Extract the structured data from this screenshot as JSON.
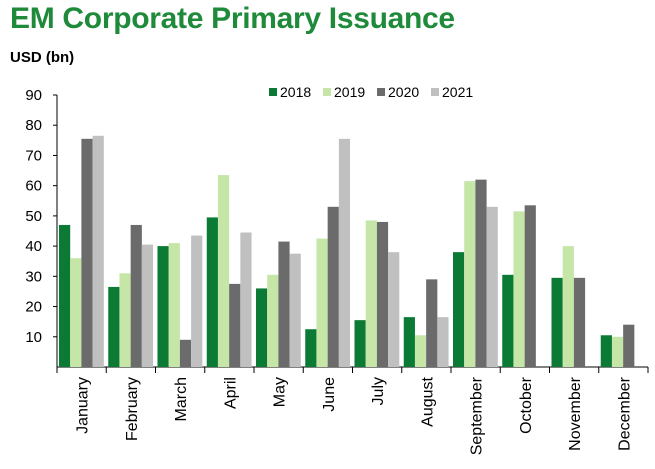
{
  "chart_data": {
    "type": "bar",
    "title": "EM Corporate Primary Issuance",
    "ylabel": "USD (bn)",
    "xlabel": "",
    "ylim": [
      0,
      90
    ],
    "yticks": [
      10,
      20,
      30,
      40,
      50,
      60,
      70,
      80,
      90
    ],
    "grid": false,
    "legend_position": "top-right",
    "categories": [
      "January",
      "February",
      "March",
      "April",
      "May",
      "June",
      "July",
      "August",
      "September",
      "October",
      "November",
      "December"
    ],
    "series": [
      {
        "name": "2018",
        "color": "#0a7a35",
        "values": [
          47,
          26.5,
          40,
          49.5,
          26,
          12.5,
          15.5,
          16.5,
          38,
          30.5,
          29.5,
          10.5
        ]
      },
      {
        "name": "2019",
        "color": "#c6e6a8",
        "values": [
          36,
          31,
          41,
          63.5,
          30.5,
          42.5,
          48.5,
          10.5,
          61.5,
          51.5,
          40,
          10
        ]
      },
      {
        "name": "2020",
        "color": "#6b6b6b",
        "values": [
          75.5,
          47,
          9,
          27.5,
          41.5,
          53,
          48,
          29,
          62,
          53.5,
          29.5,
          14
        ]
      },
      {
        "name": "2021",
        "color": "#c0c0c0",
        "values": [
          76.5,
          40.5,
          43.5,
          44.5,
          37.5,
          75.5,
          38,
          16.5,
          53,
          null,
          null,
          null
        ]
      }
    ]
  }
}
